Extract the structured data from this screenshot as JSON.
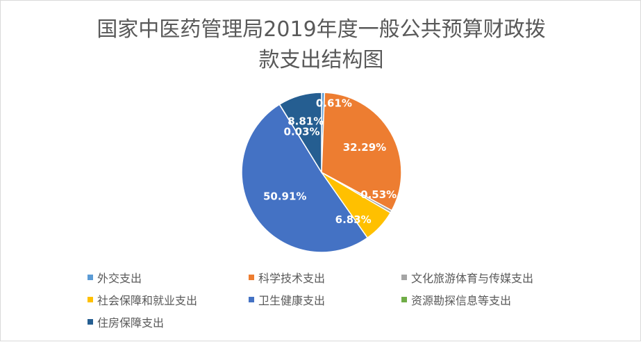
{
  "chart_data": {
    "type": "pie",
    "title_lines": [
      "国家中医药管理局2019年度一般公共预算财政拨",
      "款支出结构图"
    ],
    "slices": [
      {
        "name": "外交支出",
        "value": 0.61,
        "label": "0.61%",
        "color": "#5b9bd5"
      },
      {
        "name": "科学技术支出",
        "value": 32.29,
        "label": "32.29%",
        "color": "#ed7d31"
      },
      {
        "name": "文化旅游体育与传媒支出",
        "value": 0.53,
        "label": "0.53%",
        "color": "#a5a5a5"
      },
      {
        "name": "社会保障和就业支出",
        "value": 6.83,
        "label": "6.83%",
        "color": "#ffc000"
      },
      {
        "name": "卫生健康支出",
        "value": 50.91,
        "label": "50.91%",
        "color": "#4472c4"
      },
      {
        "name": "资源勘探信息等支出",
        "value": 0.03,
        "label": "0.03%",
        "color": "#70ad47"
      },
      {
        "name": "住房保障支出",
        "value": 8.81,
        "label": "8.81%",
        "color": "#255e91"
      }
    ],
    "legend_position": "bottom"
  }
}
